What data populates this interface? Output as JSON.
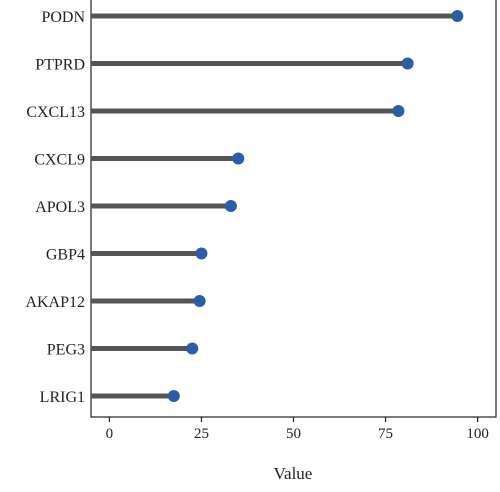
{
  "chart_data": {
    "type": "lollipop",
    "categories": [
      "PODN",
      "PTPRD",
      "CXCL13",
      "CXCL9",
      "APOL3",
      "GBP4",
      "AKAP12",
      "PEG3",
      "LRIG1"
    ],
    "values": [
      94.5,
      81,
      78.5,
      35,
      33,
      25,
      24.5,
      22.5,
      17.5
    ],
    "xlabel": "Value",
    "xlim": [
      -5,
      105
    ],
    "xticks": [
      0,
      25,
      50,
      75,
      100
    ],
    "grid": false,
    "colors": {
      "stem": "#555555",
      "marker": "#2e5da8"
    }
  }
}
